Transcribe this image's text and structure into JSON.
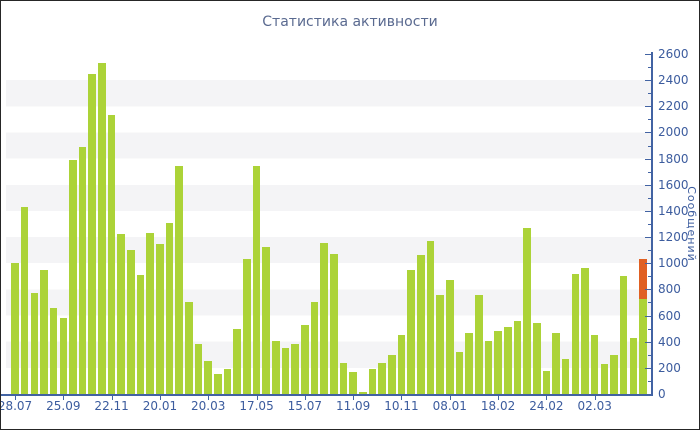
{
  "title": "Статистика активности",
  "colors": {
    "bar": "#acd338",
    "bar_highlight": "#e06023",
    "axis": "#4263a3",
    "tick_text": "#3c5c9e",
    "title_text": "#5a6a90",
    "stripe": "#f4f4f6",
    "background": "#ffffff",
    "border": "#262626"
  },
  "y_axis": {
    "label": "Сообщений",
    "min": 0,
    "max": 2600,
    "major_step": 200,
    "minor_step": 100,
    "tick_labels": [
      "0",
      "200",
      "400",
      "600",
      "800",
      "1000",
      "1200",
      "1400",
      "1600",
      "1800",
      "2000",
      "2200",
      "2400",
      "2600"
    ]
  },
  "x_axis": {
    "labels": [
      "28.07",
      "25.09",
      "22.11",
      "20.01",
      "20.03",
      "17.05",
      "15.07",
      "11.09",
      "10.11",
      "08.01",
      "18.02",
      "24.02",
      "02.03"
    ],
    "label_every_n_bars": 5
  },
  "chart_data": {
    "type": "bar",
    "title": "Статистика активности",
    "xlabel": "",
    "ylabel": "Сообщений",
    "ylim": [
      0,
      2600
    ],
    "grid": "alternating horizontal bands every 200 units",
    "legend": "none",
    "categories_shown": [
      "28.07",
      "25.09",
      "22.11",
      "20.01",
      "20.03",
      "17.05",
      "15.07",
      "11.09",
      "10.11",
      "08.01",
      "18.02",
      "24.02",
      "02.03"
    ],
    "values": [
      1000,
      1430,
      770,
      950,
      660,
      580,
      1790,
      1890,
      2450,
      2535,
      2130,
      1220,
      1105,
      910,
      1235,
      1150,
      1310,
      1745,
      700,
      385,
      250,
      150,
      190,
      495,
      1030,
      1745,
      1125,
      405,
      355,
      380,
      530,
      700,
      1155,
      1070,
      240,
      165,
      15,
      195,
      240,
      295,
      455,
      950,
      1060,
      1170,
      760,
      875,
      320,
      465,
      760,
      405,
      480,
      510,
      560,
      1270,
      540,
      175,
      470,
      265,
      915,
      965,
      450,
      230,
      300,
      900,
      430,
      1030
    ],
    "highlight": {
      "index": 65,
      "segment_from": 730,
      "description": "last bar is stacked: green up to 730, orange from 730 to 1030"
    }
  }
}
